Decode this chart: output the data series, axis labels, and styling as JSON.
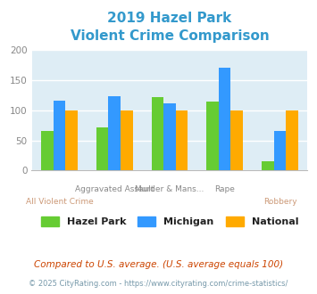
{
  "title_line1": "2019 Hazel Park",
  "title_line2": "Violent Crime Comparison",
  "title_color": "#3399cc",
  "hazel_park": [
    65,
    72,
    122,
    115,
    15
  ],
  "michigan": [
    116,
    123,
    111,
    170,
    66
  ],
  "national": [
    100,
    100,
    100,
    100,
    100
  ],
  "hazel_park_color": "#66cc33",
  "michigan_color": "#3399ff",
  "national_color": "#ffaa00",
  "bg_color": "#deedf5",
  "ylim": [
    0,
    200
  ],
  "yticks": [
    0,
    50,
    100,
    150,
    200
  ],
  "top_labels": [
    "",
    "Aggravated Assault",
    "Murder & Mans...",
    "Rape",
    ""
  ],
  "bottom_labels": [
    "All Violent Crime",
    "",
    "",
    "",
    "Robbery"
  ],
  "footnote1": "Compared to U.S. average. (U.S. average equals 100)",
  "footnote2": "© 2025 CityRating.com - https://www.cityrating.com/crime-statistics/",
  "footnote1_color": "#cc4400",
  "footnote2_color": "#7799aa",
  "legend_labels": [
    "Hazel Park",
    "Michigan",
    "National"
  ]
}
